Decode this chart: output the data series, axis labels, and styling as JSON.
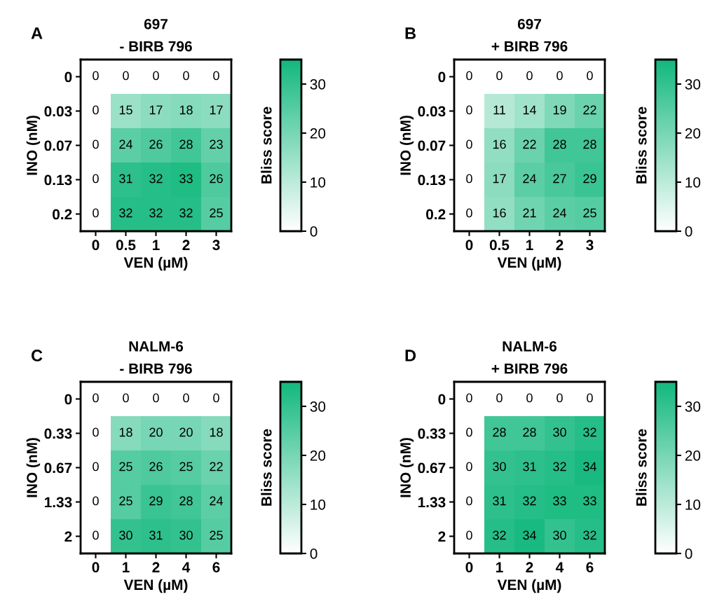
{
  "chart_data": [
    {
      "type": "heatmap",
      "title": "697",
      "subtitle": "- BIRB 796",
      "annotations": [
        "A"
      ],
      "xlabel": "VEN (µM)",
      "ylabel": "INO (nM)",
      "clabel": "Bliss score",
      "categories": [
        "0",
        "0.5",
        "1",
        "2",
        "3"
      ],
      "y_categories": [
        "0",
        "0.03",
        "0.07",
        "0.13",
        "0.2"
      ],
      "cells": [
        [
          0,
          0,
          0,
          0,
          0
        ],
        [
          0,
          15,
          17,
          18,
          17
        ],
        [
          0,
          24,
          26,
          28,
          23
        ],
        [
          0,
          31,
          32,
          33,
          26
        ],
        [
          0,
          32,
          32,
          32,
          25
        ]
      ],
      "clim": [
        0,
        35
      ],
      "cticks": [
        0,
        10,
        20,
        30
      ],
      "colors": [
        "#ffffff",
        "#12b87d"
      ],
      "data_labels": true
    },
    {
      "type": "heatmap",
      "title": "697",
      "subtitle": "+ BIRB 796",
      "annotations": [
        "B"
      ],
      "xlabel": "VEN (µM)",
      "ylabel": "INO (nM)",
      "clabel": "Bliss score",
      "categories": [
        "0",
        "0.5",
        "1",
        "2",
        "3"
      ],
      "y_categories": [
        "0",
        "0.03",
        "0.07",
        "0.13",
        "0.2"
      ],
      "cells": [
        [
          0,
          0,
          0,
          0,
          0
        ],
        [
          0,
          11,
          14,
          19,
          22
        ],
        [
          0,
          16,
          22,
          28,
          28
        ],
        [
          0,
          17,
          24,
          27,
          29
        ],
        [
          0,
          16,
          21,
          24,
          25
        ]
      ],
      "clim": [
        0,
        35
      ],
      "cticks": [
        0,
        10,
        20,
        30
      ],
      "colors": [
        "#ffffff",
        "#12b87d"
      ],
      "data_labels": true
    },
    {
      "type": "heatmap",
      "title": "NALM-6",
      "subtitle": "- BIRB 796",
      "annotations": [
        "C"
      ],
      "xlabel": "VEN (µM)",
      "ylabel": "INO (nM)",
      "clabel": "Bliss score",
      "categories": [
        "0",
        "1",
        "2",
        "4",
        "6"
      ],
      "y_categories": [
        "0",
        "0.33",
        "0.67",
        "1.33",
        "2"
      ],
      "cells": [
        [
          0,
          0,
          0,
          0,
          0
        ],
        [
          0,
          18,
          20,
          20,
          18
        ],
        [
          0,
          25,
          26,
          25,
          22
        ],
        [
          0,
          25,
          29,
          28,
          24
        ],
        [
          0,
          30,
          31,
          30,
          25
        ]
      ],
      "clim": [
        0,
        35
      ],
      "cticks": [
        0,
        10,
        20,
        30
      ],
      "colors": [
        "#ffffff",
        "#12b87d"
      ],
      "data_labels": true
    },
    {
      "type": "heatmap",
      "title": "NALM-6",
      "subtitle": "+ BIRB 796",
      "annotations": [
        "D"
      ],
      "xlabel": "VEN (µM)",
      "ylabel": "INO (nM)",
      "clabel": "Bliss score",
      "categories": [
        "0",
        "1",
        "2",
        "4",
        "6"
      ],
      "y_categories": [
        "0",
        "0.33",
        "0.67",
        "1.33",
        "2"
      ],
      "cells": [
        [
          0,
          0,
          0,
          0,
          0
        ],
        [
          0,
          28,
          28,
          30,
          32
        ],
        [
          0,
          30,
          31,
          32,
          34
        ],
        [
          0,
          31,
          32,
          33,
          33
        ],
        [
          0,
          32,
          34,
          30,
          32
        ]
      ],
      "clim": [
        0,
        35
      ],
      "cticks": [
        0,
        10,
        20,
        30
      ],
      "colors": [
        "#ffffff",
        "#12b87d"
      ],
      "data_labels": true
    }
  ]
}
